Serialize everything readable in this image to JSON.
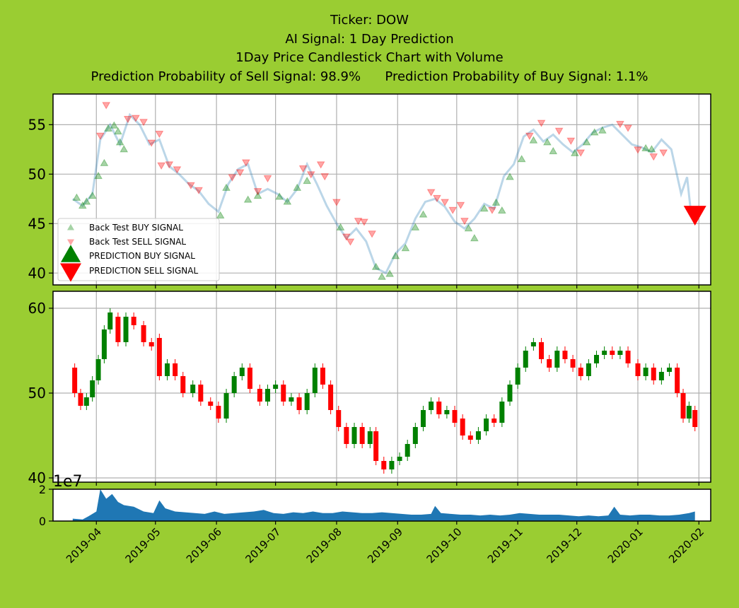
{
  "titles": {
    "line1": "Ticker: DOW",
    "line2": "AI Signal: 1 Day Prediction",
    "line3": "1Day Price Candlestick Chart with Volume",
    "line4": "Prediction Probability of Sell Signal: 98.9%      Prediction Probability of Buy Signal: 1.1%"
  },
  "colors": {
    "background": "#9ACD32",
    "buy": "#008000",
    "sell": "#FF0000",
    "price_line": "#1F77B4",
    "volume": "#1F77B4",
    "up_candle": "#008000",
    "down_candle": "#FF0000"
  },
  "legend": {
    "backtest_buy": "Back Test BUY SIGNAL",
    "backtest_sell": "Back Test SELL SIGNAL",
    "prediction_buy": "PREDICTION BUY SIGNAL",
    "prediction_sell": "PREDICTION SELL SIGNAL",
    "placement": "lower-left"
  },
  "volume_exponent": "1e7",
  "chart_data": [
    {
      "type": "line",
      "panel": "price-signals",
      "grid": true,
      "x_dates": [
        "2019-03-20",
        "2019-03-25",
        "2019-03-30",
        "2019-04-03",
        "2019-04-08",
        "2019-04-13",
        "2019-04-18",
        "2019-04-23",
        "2019-04-28",
        "2019-05-03",
        "2019-05-08",
        "2019-05-13",
        "2019-05-18",
        "2019-05-23",
        "2019-05-28",
        "2019-06-02",
        "2019-06-07",
        "2019-06-12",
        "2019-06-17",
        "2019-06-22",
        "2019-06-27",
        "2019-07-02",
        "2019-07-07",
        "2019-07-12",
        "2019-07-17",
        "2019-07-22",
        "2019-07-27",
        "2019-08-01",
        "2019-08-06",
        "2019-08-11",
        "2019-08-16",
        "2019-08-21",
        "2019-08-26",
        "2019-08-31",
        "2019-09-05",
        "2019-09-10",
        "2019-09-15",
        "2019-09-20",
        "2019-09-25",
        "2019-09-30",
        "2019-10-05",
        "2019-10-10",
        "2019-10-15",
        "2019-10-20",
        "2019-10-25",
        "2019-10-30",
        "2019-11-04",
        "2019-11-09",
        "2019-11-14",
        "2019-11-19",
        "2019-11-24",
        "2019-11-29",
        "2019-12-04",
        "2019-12-09",
        "2019-12-14",
        "2019-12-19",
        "2019-12-24",
        "2019-12-29",
        "2020-01-03",
        "2020-01-08",
        "2020-01-13",
        "2020-01-18",
        "2020-01-23",
        "2020-01-26",
        "2020-01-28",
        "2020-01-30"
      ],
      "close": [
        47.5,
        46.8,
        48.0,
        53.5,
        55.0,
        53.0,
        56.0,
        55.0,
        53.0,
        53.5,
        50.8,
        50.0,
        49.0,
        48.3,
        47.0,
        46.2,
        49.0,
        50.5,
        51.0,
        48.0,
        48.5,
        48.0,
        47.2,
        48.5,
        51.0,
        49.0,
        46.8,
        45.0,
        43.5,
        44.5,
        43.2,
        40.5,
        40.0,
        42.0,
        43.0,
        45.5,
        47.2,
        47.5,
        46.7,
        45.2,
        44.5,
        45.5,
        47.0,
        46.5,
        49.8,
        51.0,
        53.8,
        54.5,
        53.3,
        54.0,
        53.0,
        52.2,
        53.0,
        54.2,
        54.7,
        55.0,
        54.0,
        53.0,
        52.7,
        52.2,
        53.5,
        52.5,
        48.0,
        49.7,
        46.0,
        45.8
      ],
      "ylim": [
        38.8,
        58.1
      ],
      "yticks": [
        40,
        45,
        50,
        55
      ],
      "backtest_buy": [
        [
          "2019-03-22",
          47.6
        ],
        [
          "2019-03-25",
          46.8
        ],
        [
          "2019-03-27",
          47.2
        ],
        [
          "2019-03-30",
          47.8
        ],
        [
          "2019-04-02",
          49.8
        ],
        [
          "2019-04-05",
          51.1
        ],
        [
          "2019-04-07",
          54.6
        ],
        [
          "2019-04-10",
          54.9
        ],
        [
          "2019-04-12",
          54.3
        ],
        [
          "2019-04-13",
          53.2
        ],
        [
          "2019-04-15",
          52.5
        ],
        [
          "2019-06-03",
          45.8
        ],
        [
          "2019-06-06",
          48.6
        ],
        [
          "2019-06-17",
          47.4
        ],
        [
          "2019-06-22",
          47.8
        ],
        [
          "2019-07-03",
          47.7
        ],
        [
          "2019-07-07",
          47.2
        ],
        [
          "2019-07-12",
          48.6
        ],
        [
          "2019-07-17",
          49.3
        ],
        [
          "2019-08-03",
          44.6
        ],
        [
          "2019-08-21",
          40.6
        ],
        [
          "2019-08-24",
          39.6
        ],
        [
          "2019-08-28",
          39.9
        ],
        [
          "2019-08-31",
          41.7
        ],
        [
          "2019-09-05",
          42.5
        ],
        [
          "2019-09-10",
          44.6
        ],
        [
          "2019-09-14",
          45.9
        ],
        [
          "2019-10-07",
          44.5
        ],
        [
          "2019-10-10",
          43.5
        ],
        [
          "2019-10-15",
          46.5
        ],
        [
          "2019-10-21",
          47.1
        ],
        [
          "2019-10-24",
          46.3
        ],
        [
          "2019-10-28",
          49.7
        ],
        [
          "2019-11-03",
          51.5
        ],
        [
          "2019-11-09",
          53.4
        ],
        [
          "2019-11-16",
          53.2
        ],
        [
          "2019-11-19",
          52.3
        ],
        [
          "2019-11-30",
          52.1
        ],
        [
          "2019-12-06",
          53.2
        ],
        [
          "2019-12-10",
          54.2
        ],
        [
          "2019-12-14",
          54.4
        ],
        [
          "2020-01-05",
          52.6
        ],
        [
          "2020-01-08",
          52.5
        ]
      ],
      "backtest_sell": [
        [
          "2019-04-03",
          53.9
        ],
        [
          "2019-04-06",
          57.0
        ],
        [
          "2019-04-17",
          55.6
        ],
        [
          "2019-04-21",
          55.7
        ],
        [
          "2019-04-25",
          55.3
        ],
        [
          "2019-04-29",
          53.2
        ],
        [
          "2019-05-03",
          54.1
        ],
        [
          "2019-05-04",
          50.9
        ],
        [
          "2019-05-08",
          51.0
        ],
        [
          "2019-05-12",
          50.5
        ],
        [
          "2019-05-19",
          48.9
        ],
        [
          "2019-05-23",
          48.4
        ],
        [
          "2019-06-09",
          49.7
        ],
        [
          "2019-06-13",
          50.2
        ],
        [
          "2019-06-16",
          51.2
        ],
        [
          "2019-06-22",
          48.3
        ],
        [
          "2019-06-27",
          49.6
        ],
        [
          "2019-07-15",
          50.6
        ],
        [
          "2019-07-19",
          50.0
        ],
        [
          "2019-07-24",
          51.0
        ],
        [
          "2019-07-26",
          49.8
        ],
        [
          "2019-08-01",
          47.2
        ],
        [
          "2019-08-06",
          43.7
        ],
        [
          "2019-08-08",
          43.2
        ],
        [
          "2019-08-12",
          45.3
        ],
        [
          "2019-08-15",
          45.2
        ],
        [
          "2019-08-19",
          44.0
        ],
        [
          "2019-09-18",
          48.2
        ],
        [
          "2019-09-21",
          47.6
        ],
        [
          "2019-09-25",
          47.2
        ],
        [
          "2019-09-29",
          46.4
        ],
        [
          "2019-10-03",
          46.9
        ],
        [
          "2019-10-05",
          45.3
        ],
        [
          "2019-10-19",
          46.4
        ],
        [
          "2019-11-07",
          53.9
        ],
        [
          "2019-11-13",
          55.2
        ],
        [
          "2019-11-22",
          54.4
        ],
        [
          "2019-11-28",
          53.4
        ],
        [
          "2019-12-03",
          52.2
        ],
        [
          "2019-12-23",
          55.1
        ],
        [
          "2019-12-27",
          54.7
        ],
        [
          "2020-01-01",
          52.5
        ],
        [
          "2020-01-09",
          51.8
        ],
        [
          "2020-01-14",
          52.2
        ]
      ],
      "prediction_sell": [
        [
          "2020-01-30",
          46.0
        ]
      ]
    },
    {
      "type": "candlestick",
      "panel": "price-ohlc",
      "grid": true,
      "ylim": [
        39.5,
        62.0
      ],
      "yticks": [
        40,
        50,
        60
      ],
      "candles": [
        [
          "2019-03-21",
          53,
          50
        ],
        [
          "2019-03-24",
          50,
          48.5
        ],
        [
          "2019-03-27",
          48.5,
          49.5
        ],
        [
          "2019-03-30",
          49.5,
          51.5
        ],
        [
          "2019-04-02",
          51.5,
          54
        ],
        [
          "2019-04-05",
          54,
          57.5
        ],
        [
          "2019-04-08",
          57.5,
          59.5
        ],
        [
          "2019-04-12",
          59,
          56
        ],
        [
          "2019-04-16",
          56,
          59
        ],
        [
          "2019-04-20",
          59,
          58
        ],
        [
          "2019-04-25",
          58,
          56
        ],
        [
          "2019-04-29",
          56,
          55.5
        ],
        [
          "2019-05-03",
          56.5,
          52
        ],
        [
          "2019-05-07",
          52,
          53.5
        ],
        [
          "2019-05-11",
          53.5,
          52
        ],
        [
          "2019-05-15",
          52,
          50
        ],
        [
          "2019-05-20",
          50,
          51
        ],
        [
          "2019-05-24",
          51,
          49
        ],
        [
          "2019-05-29",
          49,
          48.5
        ],
        [
          "2019-06-02",
          48.5,
          47
        ],
        [
          "2019-06-06",
          47,
          50
        ],
        [
          "2019-06-10",
          50,
          52
        ],
        [
          "2019-06-14",
          52,
          53
        ],
        [
          "2019-06-18",
          53,
          50.5
        ],
        [
          "2019-06-23",
          50.5,
          49
        ],
        [
          "2019-06-27",
          49,
          50.5
        ],
        [
          "2019-07-01",
          50.5,
          51
        ],
        [
          "2019-07-05",
          51,
          49
        ],
        [
          "2019-07-09",
          49,
          49.5
        ],
        [
          "2019-07-13",
          49.5,
          48
        ],
        [
          "2019-07-17",
          48,
          50
        ],
        [
          "2019-07-21",
          50,
          53
        ],
        [
          "2019-07-25",
          53,
          51
        ],
        [
          "2019-07-29",
          51,
          48
        ],
        [
          "2019-08-02",
          48,
          46
        ],
        [
          "2019-08-06",
          46,
          44
        ],
        [
          "2019-08-10",
          44,
          46
        ],
        [
          "2019-08-14",
          46,
          44
        ],
        [
          "2019-08-18",
          44,
          45.5
        ],
        [
          "2019-08-21",
          45.5,
          42
        ],
        [
          "2019-08-25",
          42,
          41
        ],
        [
          "2019-08-29",
          41,
          42
        ],
        [
          "2019-09-02",
          42,
          42.5
        ],
        [
          "2019-09-06",
          42.5,
          44
        ],
        [
          "2019-09-10",
          44,
          46
        ],
        [
          "2019-09-14",
          46,
          48
        ],
        [
          "2019-09-18",
          48,
          49
        ],
        [
          "2019-09-22",
          49,
          47.5
        ],
        [
          "2019-09-26",
          47.5,
          48
        ],
        [
          "2019-09-30",
          48,
          46.5
        ],
        [
          "2019-10-04",
          47,
          45
        ],
        [
          "2019-10-08",
          45,
          44.5
        ],
        [
          "2019-10-12",
          44.5,
          45.5
        ],
        [
          "2019-10-16",
          45.5,
          47
        ],
        [
          "2019-10-20",
          47,
          46.5
        ],
        [
          "2019-10-24",
          46.5,
          49
        ],
        [
          "2019-10-28",
          49,
          51
        ],
        [
          "2019-11-01",
          51,
          53
        ],
        [
          "2019-11-05",
          53,
          55
        ],
        [
          "2019-11-09",
          55.5,
          56
        ],
        [
          "2019-11-13",
          56,
          54
        ],
        [
          "2019-11-17",
          54,
          53
        ],
        [
          "2019-11-21",
          53,
          55
        ],
        [
          "2019-11-25",
          55,
          54
        ],
        [
          "2019-11-29",
          54,
          53
        ],
        [
          "2019-12-03",
          53,
          52
        ],
        [
          "2019-12-07",
          52,
          53.5
        ],
        [
          "2019-12-11",
          53.5,
          54.5
        ],
        [
          "2019-12-15",
          54.5,
          55
        ],
        [
          "2019-12-19",
          55,
          54.5
        ],
        [
          "2019-12-23",
          54.5,
          55
        ],
        [
          "2019-12-27",
          55,
          53.5
        ],
        [
          "2020-01-01",
          53.5,
          52
        ],
        [
          "2020-01-05",
          52,
          53
        ],
        [
          "2020-01-09",
          53,
          51.5
        ],
        [
          "2020-01-13",
          51.5,
          52.5
        ],
        [
          "2020-01-17",
          52.5,
          53
        ],
        [
          "2020-01-21",
          53,
          50
        ],
        [
          "2020-01-24",
          50,
          47
        ],
        [
          "2020-01-27",
          47,
          48.5
        ],
        [
          "2020-01-30",
          48,
          46
        ]
      ]
    },
    {
      "type": "area",
      "panel": "volume",
      "ylim": [
        0,
        2
      ],
      "yticks": [
        0,
        2
      ],
      "x_dates": [
        "2019-03-20",
        "2019-03-25",
        "2019-03-28",
        "2019-04-01",
        "2019-04-03",
        "2019-04-06",
        "2019-04-09",
        "2019-04-12",
        "2019-04-15",
        "2019-04-20",
        "2019-04-25",
        "2019-04-30",
        "2019-05-03",
        "2019-05-06",
        "2019-05-11",
        "2019-05-16",
        "2019-05-21",
        "2019-05-26",
        "2019-05-31",
        "2019-06-05",
        "2019-06-10",
        "2019-06-15",
        "2019-06-20",
        "2019-06-25",
        "2019-06-30",
        "2019-07-05",
        "2019-07-10",
        "2019-07-15",
        "2019-07-20",
        "2019-07-25",
        "2019-07-30",
        "2019-08-04",
        "2019-08-09",
        "2019-08-14",
        "2019-08-19",
        "2019-08-24",
        "2019-08-29",
        "2019-09-03",
        "2019-09-08",
        "2019-09-13",
        "2019-09-18",
        "2019-09-20",
        "2019-09-23",
        "2019-09-28",
        "2019-10-03",
        "2019-10-08",
        "2019-10-13",
        "2019-10-18",
        "2019-10-23",
        "2019-10-28",
        "2019-11-02",
        "2019-11-07",
        "2019-11-12",
        "2019-11-17",
        "2019-11-22",
        "2019-11-27",
        "2019-12-02",
        "2019-12-07",
        "2019-12-12",
        "2019-12-17",
        "2019-12-20",
        "2019-12-23",
        "2019-12-28",
        "2020-01-02",
        "2020-01-07",
        "2020-01-12",
        "2020-01-17",
        "2020-01-22",
        "2020-01-27",
        "2020-01-30"
      ],
      "values": [
        0.15,
        0.1,
        0.3,
        0.6,
        2.0,
        1.4,
        1.7,
        1.2,
        1.0,
        0.9,
        0.6,
        0.5,
        1.3,
        0.8,
        0.6,
        0.55,
        0.5,
        0.45,
        0.6,
        0.45,
        0.5,
        0.55,
        0.6,
        0.7,
        0.5,
        0.45,
        0.55,
        0.5,
        0.6,
        0.5,
        0.5,
        0.6,
        0.55,
        0.5,
        0.5,
        0.55,
        0.5,
        0.45,
        0.4,
        0.4,
        0.45,
        0.95,
        0.5,
        0.45,
        0.4,
        0.4,
        0.35,
        0.4,
        0.35,
        0.4,
        0.5,
        0.45,
        0.4,
        0.4,
        0.4,
        0.35,
        0.3,
        0.35,
        0.3,
        0.35,
        0.9,
        0.4,
        0.35,
        0.4,
        0.4,
        0.35,
        0.35,
        0.4,
        0.5,
        0.6
      ]
    }
  ],
  "x_ticks": [
    "2019-04",
    "2019-05",
    "2019-06",
    "2019-07",
    "2019-08",
    "2019-09",
    "2019-10",
    "2019-11",
    "2019-12",
    "2020-01",
    "2020-02"
  ]
}
